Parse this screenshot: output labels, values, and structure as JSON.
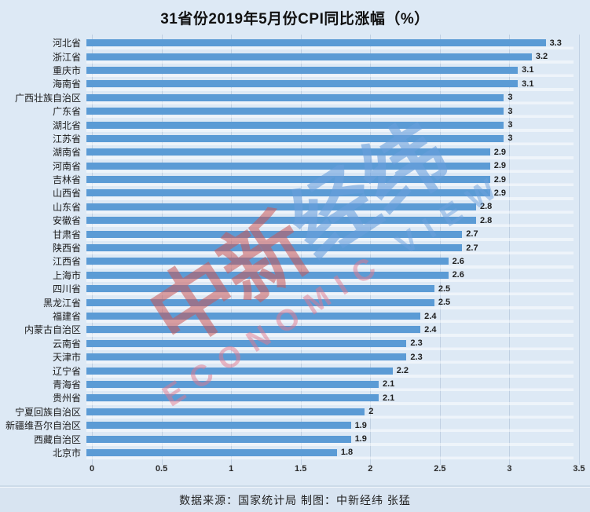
{
  "title": "31省份2019年5月份CPI同比涨幅（%）",
  "footer": {
    "text": "数据来源：国家统计局  制图：中新经纬 张猛"
  },
  "watermark": {
    "cjk_red": "中新",
    "cjk_blue": "经纬",
    "latin_pink": "ECONOMIC",
    "latin_blue": "VIEW"
  },
  "colors": {
    "background": "#dde9f5",
    "footer_band": "#d8e4f1",
    "bar": "#5b9bd5",
    "gridline": "rgba(150,170,198,0.40)",
    "watermark_red": "rgba(200,85,85,0.55)",
    "watermark_blue": "rgba(105,158,220,0.60)",
    "watermark_latin_pink": "rgba(225,120,142,0.50)",
    "watermark_latin_blue": "rgba(110,162,222,0.50)"
  },
  "chart_data": {
    "type": "bar",
    "orientation": "horizontal",
    "title": "31省份2019年5月份CPI同比涨幅（%）",
    "xlabel": "",
    "ylabel": "",
    "xlim": [
      0,
      3.5
    ],
    "x_ticks": [
      0,
      0.5,
      1,
      1.5,
      2,
      2.5,
      3,
      3.5
    ],
    "x_tick_labels": [
      "0",
      "0.5",
      "1",
      "1.5",
      "2",
      "2.5",
      "3",
      "3.5"
    ],
    "grid": "vertical",
    "legend": "none",
    "categories": [
      "河北省",
      "浙江省",
      "重庆市",
      "海南省",
      "广西壮族自治区",
      "广东省",
      "湖北省",
      "江苏省",
      "湖南省",
      "河南省",
      "吉林省",
      "山西省",
      "山东省",
      "安徽省",
      "甘肃省",
      "陕西省",
      "江西省",
      "上海市",
      "四川省",
      "黑龙江省",
      "福建省",
      "内蒙古自治区",
      "云南省",
      "天津市",
      "辽宁省",
      "青海省",
      "贵州省",
      "宁夏回族自治区",
      "新疆维吾尔自治区",
      "西藏自治区",
      "北京市"
    ],
    "values": [
      3.3,
      3.2,
      3.1,
      3.1,
      3,
      3,
      3,
      3,
      2.9,
      2.9,
      2.9,
      2.9,
      2.8,
      2.8,
      2.7,
      2.7,
      2.6,
      2.6,
      2.5,
      2.5,
      2.4,
      2.4,
      2.3,
      2.3,
      2.2,
      2.1,
      2.1,
      2,
      1.9,
      1.9,
      1.8
    ],
    "value_labels": [
      "3.3",
      "3.2",
      "3.1",
      "3.1",
      "3",
      "3",
      "3",
      "3",
      "2.9",
      "2.9",
      "2.9",
      "2.9",
      "2.8",
      "2.8",
      "2.7",
      "2.7",
      "2.6",
      "2.6",
      "2.5",
      "2.5",
      "2.4",
      "2.4",
      "2.3",
      "2.3",
      "2.2",
      "2.1",
      "2.1",
      "2",
      "1.9",
      "1.9",
      "1.8"
    ]
  }
}
